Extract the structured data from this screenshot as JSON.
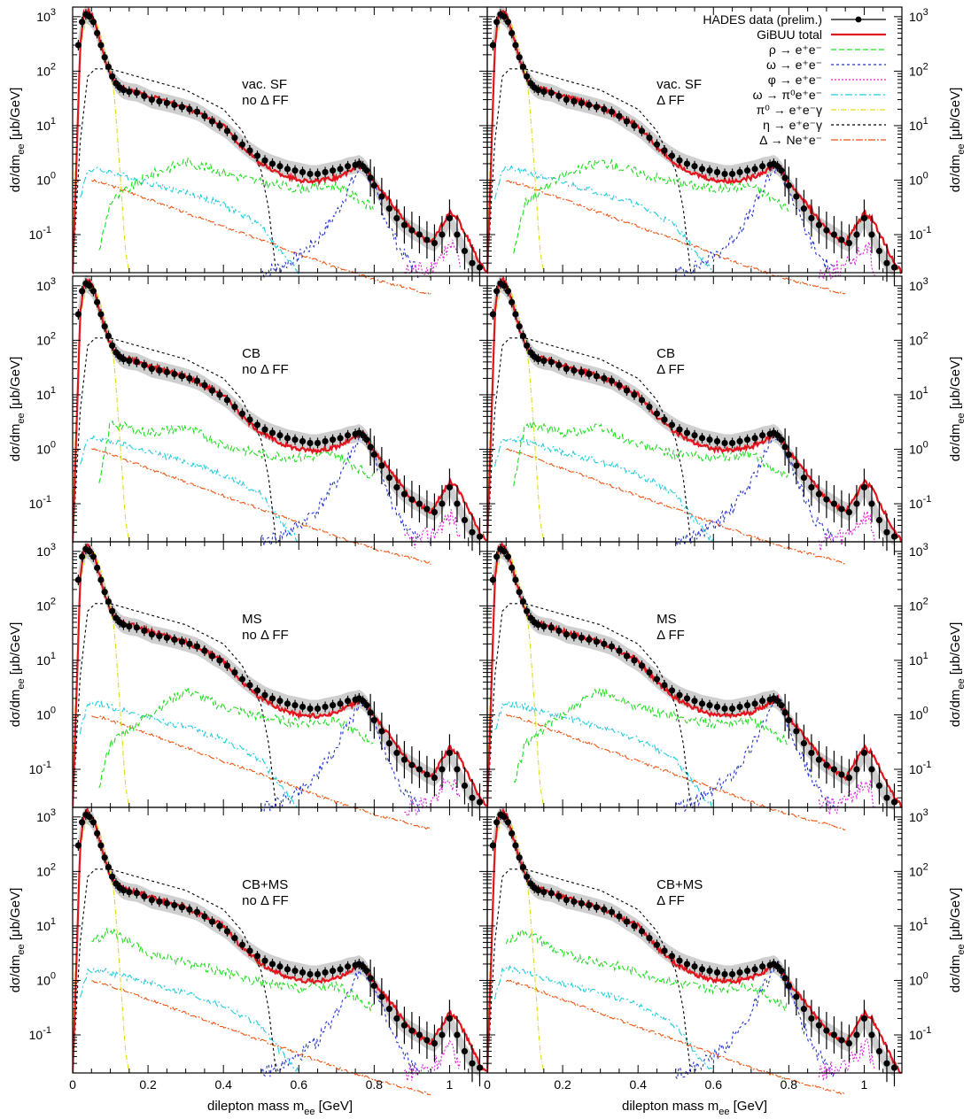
{
  "chart_data": {
    "type": "line",
    "xlabel": "dilepton mass m_ee [GeV]",
    "ylabel": "dσ/dm_ee [μb/GeV]",
    "xlim": [
      0,
      1.1
    ],
    "ylim": [
      0.02,
      1500
    ],
    "yscale": "log",
    "grid": false,
    "legend_position": "top-right of upper-right panel",
    "x_ticks": [
      "0",
      "0.2",
      "0.4",
      "0.6",
      "0.8",
      "1"
    ],
    "y_ticks": [
      {
        "value": 0.1,
        "base": "10",
        "exp": "-1"
      },
      {
        "value": 1,
        "base": "10",
        "exp": "0"
      },
      {
        "value": 10,
        "base": "10",
        "exp": "1"
      },
      {
        "value": 100,
        "base": "10",
        "exp": "2"
      },
      {
        "value": 1000,
        "base": "10",
        "exp": "3"
      }
    ],
    "legend": [
      {
        "key": "data",
        "label": "HADES data (prelim.)",
        "color": "#000000",
        "dash": "",
        "marker": true
      },
      {
        "key": "total",
        "label": "GiBUU total",
        "color": "#e3141c",
        "dash": "",
        "width": 2.2
      },
      {
        "key": "rho",
        "label": "ρ → e⁺e⁻",
        "color": "#22dd22",
        "dash": "6,3"
      },
      {
        "key": "omega",
        "label": "ω → e⁺e⁻",
        "color": "#2233cc",
        "dash": "3,3"
      },
      {
        "key": "phi",
        "label": "φ → e⁺e⁻",
        "color": "#dd22dd",
        "dash": "2,2"
      },
      {
        "key": "omegaDalitz",
        "label": "ω → π⁰e⁺e⁻",
        "color": "#22ccdd",
        "dash": "8,3,2,3"
      },
      {
        "key": "pi0",
        "label": "π⁰ → e⁺e⁻γ",
        "color": "#dddd22",
        "dash": "6,2,1,2"
      },
      {
        "key": "eta",
        "label": "η → e⁺e⁻γ",
        "color": "#000000",
        "dash": "3,3"
      },
      {
        "key": "delta",
        "label": "Δ → Ne⁺e⁻",
        "color": "#ee5511",
        "dash": "8,2,2,2"
      }
    ],
    "panels": [
      {
        "id": "vac-noFF",
        "title": [
          "vac. SF",
          "no Δ FF"
        ],
        "rho_x": [
          0.07,
          0.1,
          0.2,
          0.3,
          0.4,
          0.5,
          0.6,
          0.7,
          0.8
        ],
        "rho_y": [
          0.05,
          0.4,
          1.2,
          2.2,
          1.4,
          0.9,
          0.7,
          0.8,
          0.3
        ],
        "delta_y0": 25
      },
      {
        "id": "vac-FF",
        "title": [
          "vac. SF",
          "Δ FF"
        ],
        "rho_x": [
          0.07,
          0.1,
          0.2,
          0.3,
          0.4,
          0.5,
          0.6,
          0.7,
          0.8
        ],
        "rho_y": [
          0.05,
          0.4,
          1.2,
          2.2,
          1.4,
          0.9,
          0.7,
          0.8,
          0.3
        ],
        "delta_y0": 25
      },
      {
        "id": "CB-noFF",
        "title": [
          "CB",
          "no Δ FF"
        ],
        "rho_x": [
          0.07,
          0.1,
          0.2,
          0.3,
          0.4,
          0.5,
          0.6,
          0.7,
          0.8
        ],
        "rho_y": [
          0.2,
          3.0,
          2.0,
          2.5,
          1.2,
          0.8,
          0.7,
          0.8,
          0.3
        ],
        "delta_y0": 25
      },
      {
        "id": "CB-FF",
        "title": [
          "CB",
          "Δ FF"
        ],
        "rho_x": [
          0.07,
          0.1,
          0.2,
          0.3,
          0.4,
          0.5,
          0.6,
          0.7,
          0.8
        ],
        "rho_y": [
          0.2,
          3.0,
          2.0,
          2.5,
          1.2,
          0.8,
          0.7,
          0.8,
          0.3
        ],
        "delta_y0": 25
      },
      {
        "id": "MS-noFF",
        "title": [
          "MS",
          "no Δ FF"
        ],
        "rho_x": [
          0.07,
          0.1,
          0.2,
          0.3,
          0.4,
          0.5,
          0.6,
          0.7,
          0.8
        ],
        "rho_y": [
          0.05,
          0.3,
          1.0,
          2.8,
          1.4,
          0.9,
          0.7,
          0.8,
          0.3
        ],
        "delta_y0": 25
      },
      {
        "id": "MS-FF",
        "title": [
          "MS",
          "Δ FF"
        ],
        "rho_x": [
          0.07,
          0.1,
          0.2,
          0.3,
          0.4,
          0.5,
          0.6,
          0.7,
          0.8
        ],
        "rho_y": [
          0.05,
          0.3,
          1.0,
          2.8,
          1.4,
          0.9,
          0.7,
          0.8,
          0.3
        ],
        "delta_y0": 25
      },
      {
        "id": "CBMS-noFF",
        "title": [
          "CB+MS",
          "no Δ FF"
        ],
        "rho_x": [
          0.05,
          0.1,
          0.2,
          0.3,
          0.4,
          0.5,
          0.6,
          0.7,
          0.8
        ],
        "rho_y": [
          5.0,
          8.0,
          3.0,
          2.2,
          1.4,
          0.9,
          0.7,
          0.8,
          0.3
        ],
        "delta_y0": 25
      },
      {
        "id": "CBMS-FF",
        "title": [
          "CB+MS",
          "Δ FF"
        ],
        "rho_x": [
          0.05,
          0.1,
          0.2,
          0.3,
          0.4,
          0.5,
          0.6,
          0.7,
          0.8
        ],
        "rho_y": [
          5.0,
          8.0,
          3.0,
          2.2,
          1.4,
          0.9,
          0.7,
          0.8,
          0.3
        ],
        "delta_y0": 25
      }
    ],
    "series": {
      "data": {
        "x": [
          0.015,
          0.025,
          0.035,
          0.045,
          0.055,
          0.065,
          0.075,
          0.085,
          0.095,
          0.105,
          0.115,
          0.125,
          0.135,
          0.15,
          0.17,
          0.19,
          0.21,
          0.23,
          0.25,
          0.27,
          0.29,
          0.31,
          0.33,
          0.35,
          0.37,
          0.39,
          0.41,
          0.43,
          0.45,
          0.47,
          0.49,
          0.51,
          0.53,
          0.55,
          0.57,
          0.59,
          0.61,
          0.63,
          0.65,
          0.67,
          0.69,
          0.71,
          0.73,
          0.75,
          0.76,
          0.77,
          0.78,
          0.79,
          0.8,
          0.82,
          0.84,
          0.86,
          0.88,
          0.9,
          0.92,
          0.94,
          0.96,
          0.98,
          1.0,
          1.02,
          1.04,
          1.06,
          1.08
        ],
        "y": [
          300,
          800,
          1100,
          1000,
          800,
          500,
          300,
          180,
          120,
          80,
          60,
          50,
          45,
          42,
          40,
          35,
          30,
          28,
          26,
          24,
          22,
          20,
          18,
          15,
          12,
          10,
          8,
          6,
          4.5,
          3.5,
          2.8,
          2.3,
          2.0,
          1.8,
          1.6,
          1.5,
          1.4,
          1.3,
          1.3,
          1.4,
          1.5,
          1.6,
          1.8,
          1.9,
          2.0,
          1.8,
          1.5,
          1.1,
          0.8,
          0.5,
          0.3,
          0.2,
          0.15,
          0.12,
          0.1,
          0.08,
          0.07,
          0.1,
          0.2,
          0.1,
          0.05,
          0.03,
          0.025
        ]
      },
      "total": {
        "x": [
          0.0,
          0.01,
          0.02,
          0.03,
          0.04,
          0.05,
          0.06,
          0.07,
          0.08,
          0.09,
          0.1,
          0.11,
          0.12,
          0.13,
          0.14,
          0.16,
          0.2,
          0.3,
          0.4,
          0.45,
          0.5,
          0.55,
          0.6,
          0.65,
          0.7,
          0.74,
          0.77,
          0.8,
          0.85,
          0.9,
          0.95,
          1.0,
          1.02,
          1.05,
          1.08,
          1.1
        ],
        "y": [
          0.02,
          2,
          300,
          1100,
          1300,
          1100,
          700,
          400,
          220,
          130,
          85,
          65,
          55,
          50,
          47,
          44,
          35,
          22,
          10,
          4,
          2,
          1.3,
          1.0,
          0.95,
          1.1,
          1.5,
          2.0,
          0.9,
          0.35,
          0.12,
          0.07,
          0.25,
          0.2,
          0.08,
          0.03,
          0.02
        ]
      },
      "omega": {
        "x": [
          0.5,
          0.55,
          0.6,
          0.65,
          0.7,
          0.74,
          0.77,
          0.8,
          0.83,
          0.87,
          0.92
        ],
        "y": [
          0.02,
          0.025,
          0.04,
          0.08,
          0.25,
          0.9,
          2.0,
          0.7,
          0.2,
          0.05,
          0.02
        ]
      },
      "phi": {
        "x": [
          0.88,
          0.95,
          0.99,
          1.01,
          1.03
        ],
        "y": [
          0.02,
          0.025,
          0.05,
          0.06,
          0.02
        ]
      },
      "omegaDalitz": {
        "x": [
          0.02,
          0.04,
          0.06,
          0.1,
          0.2,
          0.3,
          0.4,
          0.5,
          0.55,
          0.6
        ],
        "y": [
          0.5,
          1.5,
          1.6,
          1.4,
          0.9,
          0.6,
          0.35,
          0.15,
          0.05,
          0.02
        ]
      },
      "pi0": {
        "x": [
          0.0,
          0.01,
          0.02,
          0.04,
          0.06,
          0.08,
          0.1,
          0.11,
          0.12,
          0.13,
          0.14,
          0.15
        ],
        "y": [
          0.1,
          5,
          300,
          1100,
          900,
          350,
          100,
          40,
          5,
          0.5,
          0.05,
          0.02
        ]
      },
      "eta": {
        "x": [
          0.0,
          0.02,
          0.04,
          0.06,
          0.1,
          0.2,
          0.3,
          0.4,
          0.45,
          0.5,
          0.52,
          0.54
        ],
        "y": [
          0.02,
          5,
          80,
          110,
          110,
          70,
          45,
          20,
          8,
          1.5,
          0.3,
          0.02
        ]
      },
      "delta": {
        "x": [
          0.05,
          0.1,
          0.2,
          0.3,
          0.4,
          0.5,
          0.6,
          0.7,
          0.8,
          0.9,
          0.95
        ],
        "y": [
          1.0,
          0.8,
          0.45,
          0.25,
          0.14,
          0.08,
          0.045,
          0.025,
          0.015,
          0.01,
          0.008
        ]
      }
    }
  }
}
